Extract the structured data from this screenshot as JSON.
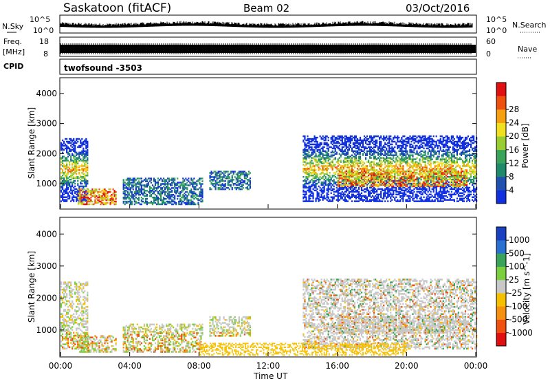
{
  "header": {
    "station": "Saskatoon (fitACF)",
    "beam": "Beam 02",
    "date": "03/Oct/2016"
  },
  "strips": {
    "nsky_label": "N.Sky",
    "nsky_ticks": [
      "10^5",
      "10^0"
    ],
    "nsearch_label": "N.Search",
    "nsearch_ticks": [
      "10^5",
      "10^0"
    ],
    "freq_label_top": "Freq.",
    "freq_label_bottom": "[MHz]",
    "freq_ticks": [
      "18",
      "8"
    ],
    "nave_label": "Nave",
    "nave_ticks": [
      "60",
      "0"
    ],
    "cpid_label": "CPID",
    "cpid_value": "twofsound -3503"
  },
  "chart_data": [
    {
      "type": "heatmap",
      "name": "power",
      "ylabel": "Slant Range [km]",
      "ylim": [
        180,
        4500
      ],
      "yticks": [
        "1000",
        "2000",
        "3000",
        "4000"
      ],
      "xlim_hours": [
        0,
        24
      ],
      "colorbar_label": "Power [dB]",
      "colorbar_ticks": [
        "4",
        "8",
        "12",
        "16",
        "20",
        "24",
        "28"
      ],
      "colorbar_colors": [
        "#1030e0",
        "#2050b0",
        "#1e8a6a",
        "#3aa35a",
        "#9acd32",
        "#f0e020",
        "#f5a010",
        "#ee5010",
        "#e01010"
      ],
      "regions": [
        {
          "t0": 0.0,
          "t1": 1.6,
          "r0": 400,
          "r1": 2500,
          "level": "mixed"
        },
        {
          "t0": 1.0,
          "t1": 3.2,
          "r0": 300,
          "r1": 800,
          "level": "strong"
        },
        {
          "t0": 3.6,
          "t1": 8.2,
          "r0": 300,
          "r1": 1200,
          "level": "weak"
        },
        {
          "t0": 8.6,
          "t1": 11.0,
          "r0": 800,
          "r1": 1400,
          "level": "weak"
        },
        {
          "t0": 14.0,
          "t1": 24.0,
          "r0": 400,
          "r1": 2600,
          "level": "mixed"
        },
        {
          "t0": 16.0,
          "t1": 23.5,
          "r0": 900,
          "r1": 1400,
          "level": "strong"
        }
      ]
    },
    {
      "type": "heatmap",
      "name": "velocity",
      "ylabel": "Slant Range [km]",
      "ylim": [
        180,
        4500
      ],
      "yticks": [
        "1000",
        "2000",
        "3000",
        "4000"
      ],
      "xlim_hours": [
        0,
        24
      ],
      "xticks": [
        "00:00",
        "04:00",
        "08:00",
        "12:00",
        "16:00",
        "20:00",
        "00:00"
      ],
      "xlabel": "Time UT",
      "colorbar_label": "Velocity [m s^-1]",
      "colorbar_ticks": [
        "1000",
        "500",
        "100",
        "25",
        "-25",
        "-100",
        "-500",
        "-1000"
      ],
      "colorbar_colors": [
        "#1840c0",
        "#2a70d0",
        "#3aa35a",
        "#7cd040",
        "#c8c8c8",
        "#f5c000",
        "#f59010",
        "#f05010",
        "#e01010"
      ]
    }
  ]
}
